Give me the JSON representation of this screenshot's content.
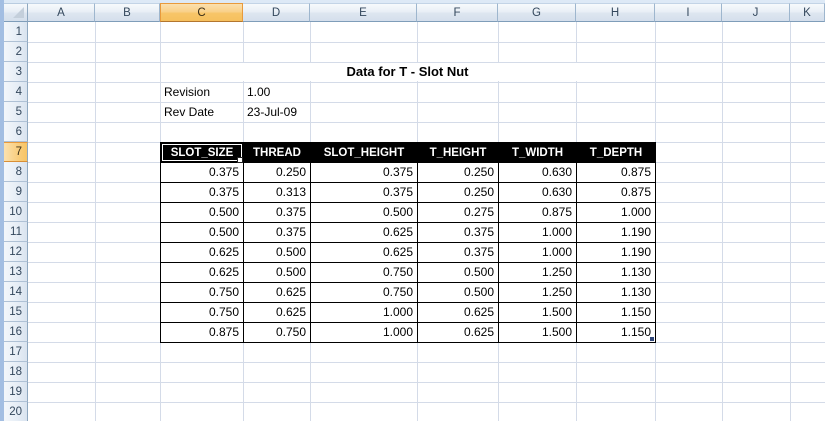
{
  "app": {
    "kind": "spreadsheet-grid",
    "selected_cell": "C7",
    "selected_column": "C",
    "selected_row": "7"
  },
  "sheet": {
    "title": "Data for T - Slot Nut",
    "column_headers": [
      "A",
      "B",
      "C",
      "D",
      "E",
      "F",
      "G",
      "H",
      "I",
      "J",
      "K"
    ],
    "row_headers": [
      "1",
      "2",
      "3",
      "4",
      "5",
      "6",
      "7",
      "8",
      "9",
      "10",
      "11",
      "12",
      "13",
      "14",
      "15",
      "16",
      "17",
      "18",
      "19",
      "20"
    ],
    "meta": [
      {
        "label": "Revision",
        "value": "1.00"
      },
      {
        "label": "Rev Date",
        "value": "23-Jul-09"
      }
    ]
  },
  "chart_data": {
    "type": "table",
    "title": "Data for T - Slot Nut",
    "columns": [
      "SLOT_SIZE",
      "THREAD",
      "SLOT_HEIGHT",
      "T_HEIGHT",
      "T_WIDTH",
      "T_DEPTH"
    ],
    "rows": [
      [
        "0.375",
        "0.250",
        "0.375",
        "0.250",
        "0.630",
        "0.875"
      ],
      [
        "0.375",
        "0.313",
        "0.375",
        "0.250",
        "0.630",
        "0.875"
      ],
      [
        "0.500",
        "0.375",
        "0.500",
        "0.275",
        "0.875",
        "1.000"
      ],
      [
        "0.500",
        "0.375",
        "0.625",
        "0.375",
        "1.000",
        "1.190"
      ],
      [
        "0.625",
        "0.500",
        "0.625",
        "0.375",
        "1.000",
        "1.190"
      ],
      [
        "0.625",
        "0.500",
        "0.750",
        "0.500",
        "1.250",
        "1.130"
      ],
      [
        "0.750",
        "0.625",
        "0.750",
        "0.500",
        "1.250",
        "1.130"
      ],
      [
        "0.750",
        "0.625",
        "1.000",
        "0.625",
        "1.500",
        "1.150"
      ],
      [
        "0.875",
        "0.750",
        "1.000",
        "0.625",
        "1.500",
        "1.150"
      ]
    ]
  },
  "colors": {
    "table_header_fill": "#000000",
    "table_header_text": "#FFFFFF",
    "selected_header_fill": "#F7C568",
    "selected_header_border": "#E89A3C",
    "gridline": "#D4DBE8",
    "header_fill": "#DDE6F0",
    "header_border": "#9EB6CE",
    "last_cell_marker": "#2E4478"
  }
}
